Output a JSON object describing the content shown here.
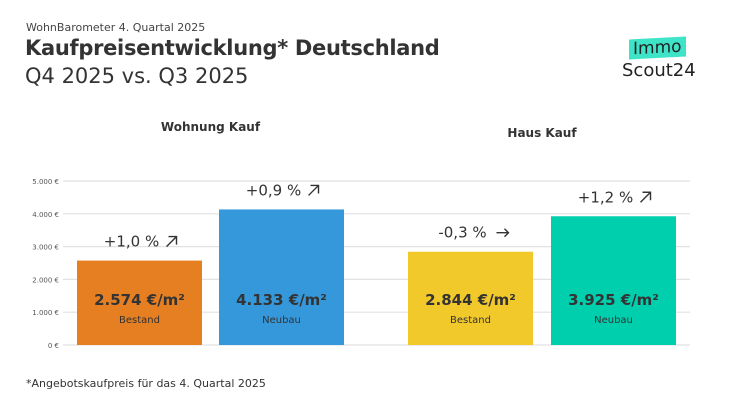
{
  "header": {
    "kicker": "WohnBarometer 4. Quartal 2025",
    "title": "Kaufpreisentwicklung* Deutschland",
    "subtitle": "Q4 2025 vs. Q3 2025"
  },
  "logo": {
    "line1": "Immo",
    "line2": "Scout24"
  },
  "footnote": "*Angebotskaufpreis für das 4. Quartal 2025",
  "chart_data": {
    "type": "bar",
    "ylim": [
      0,
      5000
    ],
    "yticks": [
      0,
      1000,
      2000,
      3000,
      4000,
      5000
    ],
    "ytick_labels": [
      "0 €",
      "1.000 €",
      "2.000 €",
      "3.000 €",
      "4.000 €",
      "5.000 €"
    ],
    "grid": true,
    "groups": [
      {
        "label": "Wohnung Kauf",
        "bars": [
          {
            "category": "Bestand",
            "value": 2574,
            "value_label": "2.574 €/m²",
            "change": "+1,0 %",
            "trend": "up",
            "color": "#e67e22"
          },
          {
            "category": "Neubau",
            "value": 4133,
            "value_label": "4.133 €/m²",
            "change": "+0,9 %",
            "trend": "up",
            "color": "#3498db"
          }
        ]
      },
      {
        "label": "Haus Kauf",
        "bars": [
          {
            "category": "Bestand",
            "value": 2844,
            "value_label": "2.844 €/m²",
            "change": "-0,3 %",
            "trend": "flat",
            "color": "#f1c92b"
          },
          {
            "category": "Neubau",
            "value": 3925,
            "value_label": "3.925 €/m²",
            "change": "+1,2 %",
            "trend": "up",
            "color": "#00cfae"
          }
        ]
      }
    ]
  }
}
